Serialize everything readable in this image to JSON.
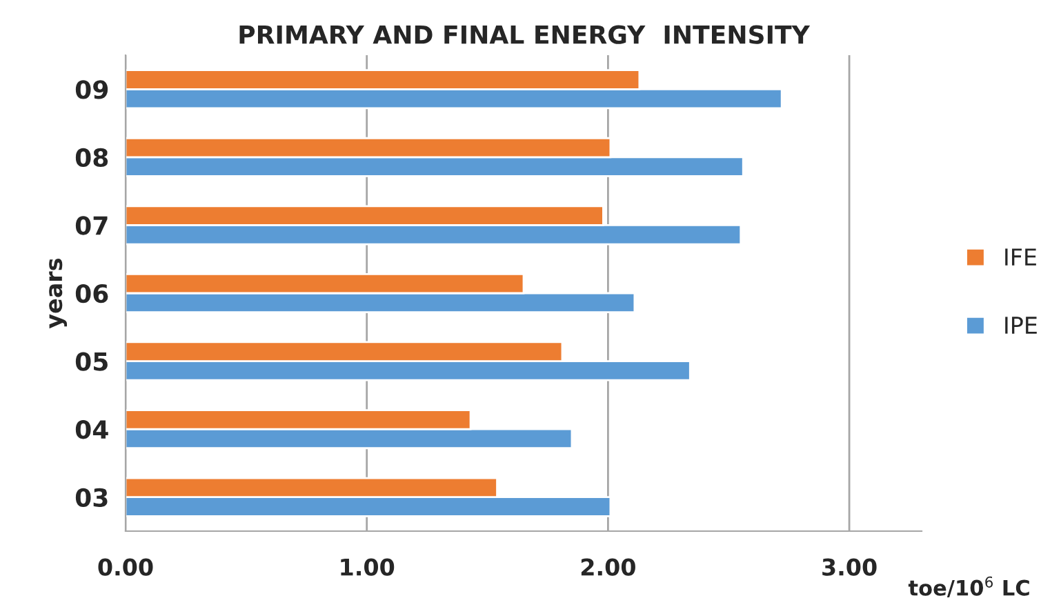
{
  "chart_data": {
    "type": "bar",
    "orientation": "horizontal",
    "title": "PRIMARY AND FINAL ENERGY  INTENSITY",
    "xlabel": "toe/10$^{6}$ LC",
    "ylabel": "years",
    "categories": [
      "09",
      "08",
      "07",
      "06",
      "05",
      "04",
      "03"
    ],
    "series": [
      {
        "name": "IPE",
        "color": "#5b9bd5",
        "values": [
          2.72,
          2.56,
          2.55,
          2.11,
          2.34,
          1.85,
          2.01
        ]
      },
      {
        "name": "IFE",
        "color": "#ed7d31",
        "values": [
          2.13,
          2.01,
          1.98,
          1.65,
          1.81,
          1.43,
          1.54
        ]
      }
    ],
    "xlim": [
      0,
      3.3
    ],
    "xticks": [
      {
        "value": 0,
        "label": "0.00"
      },
      {
        "value": 1,
        "label": "1.00"
      },
      {
        "value": 2,
        "label": "2.00"
      },
      {
        "value": 3,
        "label": "3.00"
      }
    ],
    "grid": "x",
    "legend": "right"
  }
}
